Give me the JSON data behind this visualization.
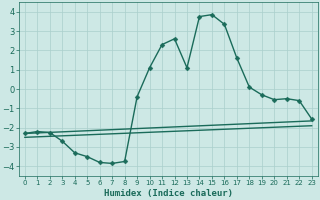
{
  "title": "",
  "xlabel": "Humidex (Indice chaleur)",
  "xlim": [
    -0.5,
    23.5
  ],
  "ylim": [
    -4.5,
    4.5
  ],
  "yticks": [
    -4,
    -3,
    -2,
    -1,
    0,
    1,
    2,
    3,
    4
  ],
  "xticks": [
    0,
    1,
    2,
    3,
    4,
    5,
    6,
    7,
    8,
    9,
    10,
    11,
    12,
    13,
    14,
    15,
    16,
    17,
    18,
    19,
    20,
    21,
    22,
    23
  ],
  "bg_color": "#cde8e5",
  "grid_color": "#aacfcc",
  "line_color": "#1a6b5a",
  "line1_x": [
    0,
    1,
    2,
    3,
    4,
    5,
    6,
    7,
    8,
    9,
    10,
    11,
    12,
    13,
    14,
    15,
    16,
    17,
    18,
    19,
    20,
    21,
    22,
    23
  ],
  "line1_y": [
    -2.3,
    -2.2,
    -2.25,
    -2.7,
    -3.3,
    -3.5,
    -3.8,
    -3.85,
    -3.75,
    -0.4,
    1.1,
    2.3,
    2.6,
    1.1,
    3.75,
    3.85,
    3.35,
    1.6,
    0.1,
    -0.3,
    -0.55,
    -0.5,
    -0.6,
    -1.55
  ],
  "line2_x": [
    0,
    23
  ],
  "line2_y": [
    -2.3,
    -1.65
  ],
  "line3_x": [
    0,
    23
  ],
  "line3_y": [
    -2.5,
    -1.9
  ],
  "markersize": 2.5,
  "linewidth": 1.0
}
